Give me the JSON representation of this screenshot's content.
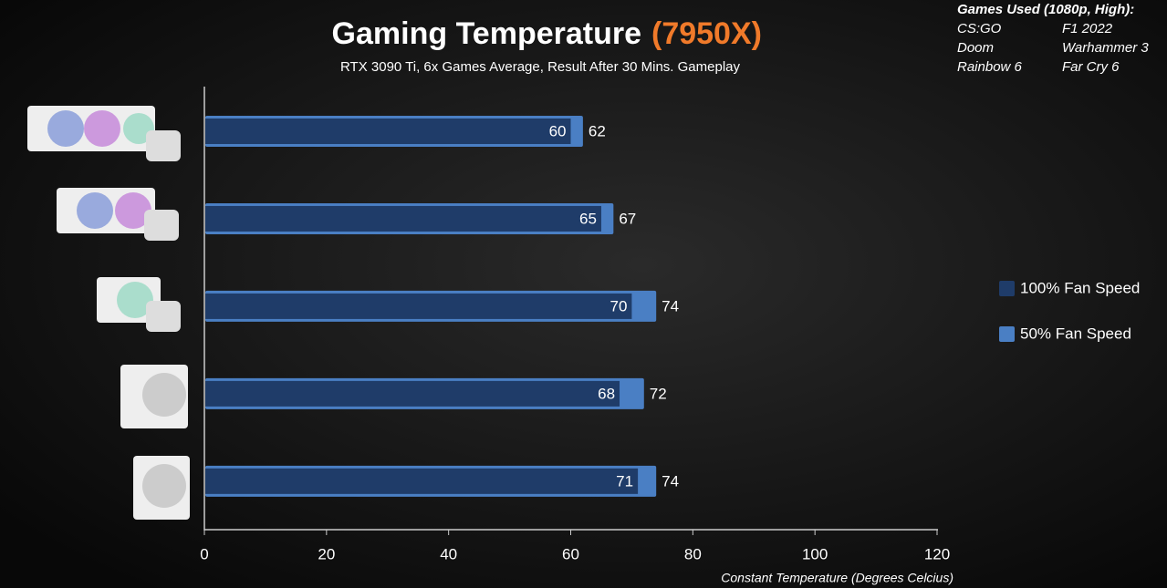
{
  "chart_data": {
    "type": "bar",
    "orientation": "horizontal",
    "title": "Gaming Temperature",
    "title_highlight": "(7950X)",
    "title_highlight_color": "#f07a2a",
    "subtitle": "RTX 3090 Ti, 6x Games Average, Result After 30 Mins. Gameplay",
    "xlabel": "Constant Temperature (Degrees Celcius)",
    "categories": [
      null,
      null,
      null,
      null,
      null
    ],
    "series": [
      {
        "name": "100% Fan Speed",
        "color": "#1f3c69",
        "values": [
          60,
          65,
          70,
          68,
          71
        ]
      },
      {
        "name": "50% Fan Speed",
        "color": "#4a7fc4",
        "values": [
          62,
          67,
          74,
          72,
          74
        ]
      }
    ],
    "xlim": [
      0,
      120
    ],
    "xticks": [
      0,
      20,
      40,
      60,
      80,
      100,
      120
    ],
    "legend": "right"
  },
  "games_note": {
    "title": "Games Used (1080p, High):",
    "rows": [
      [
        "CS:GO",
        "F1 2022"
      ],
      [
        "Doom",
        "Warhammer 3"
      ],
      [
        "Rainbow 6",
        "Far Cry 6"
      ]
    ]
  }
}
